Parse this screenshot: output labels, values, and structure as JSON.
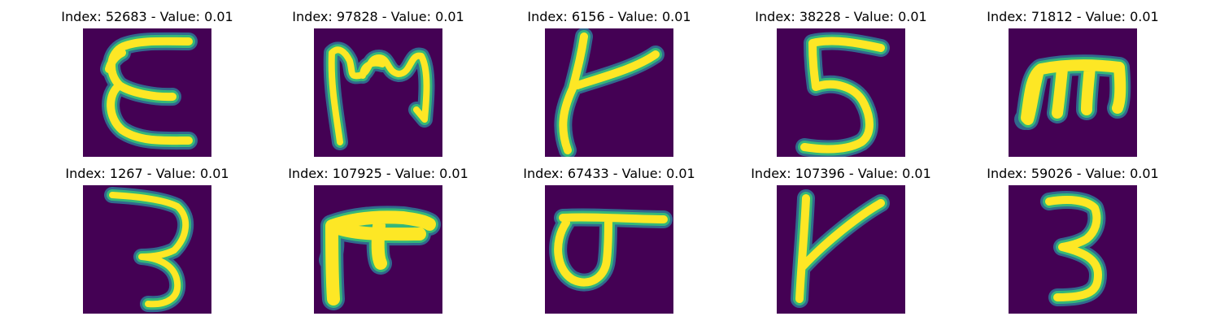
{
  "colors": {
    "background": "#440154",
    "stroke_core": "#fde725",
    "stroke_edge_1": "#b5de2b",
    "stroke_edge_2": "#35b779",
    "stroke_edge_3": "#21918c",
    "stroke_edge_4": "#31688e",
    "stroke_edge_5": "#443983"
  },
  "images": [
    {
      "title": "Index: 52683 - Value: 0.01",
      "glyph": "E"
    },
    {
      "title": "Index: 97828 - Value: 0.01",
      "glyph": "M"
    },
    {
      "title": "Index: 6156 - Value: 0.01",
      "glyph": "k"
    },
    {
      "title": "Index: 38228 - Value: 0.01",
      "glyph": "5"
    },
    {
      "title": "Index: 71812 - Value: 0.01",
      "glyph": "m"
    },
    {
      "title": "Index: 1267 - Value: 0.01",
      "glyph": "3"
    },
    {
      "title": "Index: 107925 - Value: 0.01",
      "glyph": "m"
    },
    {
      "title": "Index: 67433 - Value: 0.01",
      "glyph": "o"
    },
    {
      "title": "Index: 107396 - Value: 0.01",
      "glyph": "Y"
    },
    {
      "title": "Index: 59026 - Value: 0.01",
      "glyph": "3"
    }
  ]
}
